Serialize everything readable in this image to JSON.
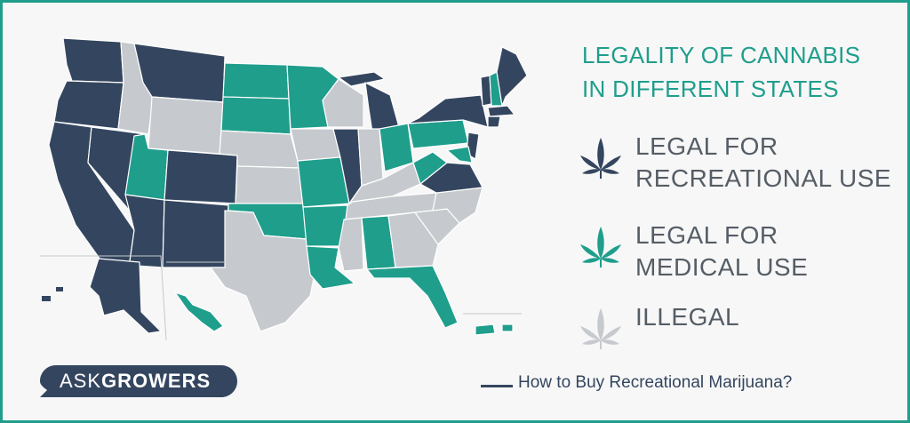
{
  "legend": {
    "title_line1": "LEGALITY OF CANNABIS",
    "title_line2": "IN DIFFERENT STATES",
    "items": [
      {
        "line1": "LEGAL FOR",
        "line2": "RECREATIONAL USE",
        "color": "#34465f",
        "icon": "cannabis-leaf-icon"
      },
      {
        "line1": "LEGAL FOR",
        "line2": "MEDICAL USE",
        "color": "#1f9e8c",
        "icon": "cannabis-leaf-icon"
      },
      {
        "line1": "ILLEGAL",
        "line2": "",
        "color": "#c6c9cd",
        "icon": "cannabis-leaf-icon"
      }
    ]
  },
  "logo": {
    "part1": "ASK",
    "part2": "GROWERS",
    "color": "#34465f"
  },
  "footer": {
    "link_text": "How to Buy Recreational Marijuana?"
  },
  "colors": {
    "recreational": "#34465f",
    "medical": "#1f9e8c",
    "illegal": "#c6c9cd",
    "accent": "#1f9e8c"
  }
}
